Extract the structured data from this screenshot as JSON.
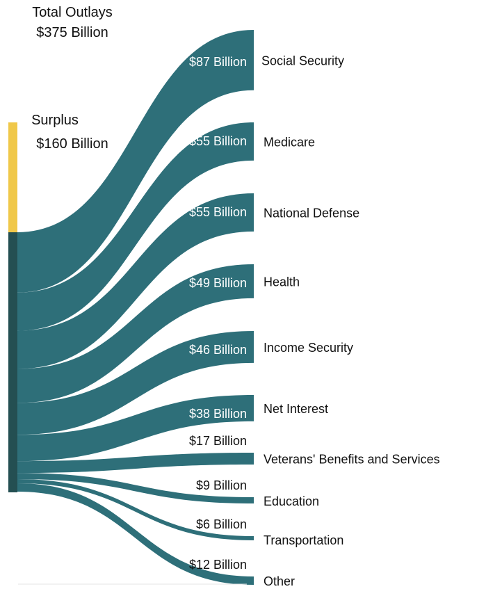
{
  "header": {
    "total_line1": "Total Outlays",
    "total_line2": "$375 Billion",
    "surplus_line1": "Surplus",
    "surplus_line2": "$160 Billion"
  },
  "colors": {
    "flow": "#2e6f79",
    "outlays_bar": "#244f52",
    "surplus_bar": "#f0c84a",
    "inner_label": "#ffffff",
    "outer_label": "#111111"
  },
  "chart_data": {
    "type": "sankey",
    "title": "Total Outlays",
    "total": 375,
    "surplus": 160,
    "unit": "Billion",
    "flows": [
      {
        "name": "Social Security",
        "value": 87,
        "label": "$87 Billion"
      },
      {
        "name": "Medicare",
        "value": 55,
        "label": "$55 Billion"
      },
      {
        "name": "National Defense",
        "value": 55,
        "label": "$55 Billion"
      },
      {
        "name": "Health",
        "value": 49,
        "label": "$49 Billion"
      },
      {
        "name": "Income Security",
        "value": 46,
        "label": "$46 Billion"
      },
      {
        "name": "Net Interest",
        "value": 38,
        "label": "$38 Billion"
      },
      {
        "name": "Veterans' Benefits and Services",
        "value": 17,
        "label": "$17 Billion"
      },
      {
        "name": "Education",
        "value": 9,
        "label": "$9 Billion"
      },
      {
        "name": "Transportation",
        "value": 6,
        "label": "$6 Billion"
      },
      {
        "name": "Other",
        "value": 12,
        "label": "$12 Billion"
      }
    ]
  }
}
